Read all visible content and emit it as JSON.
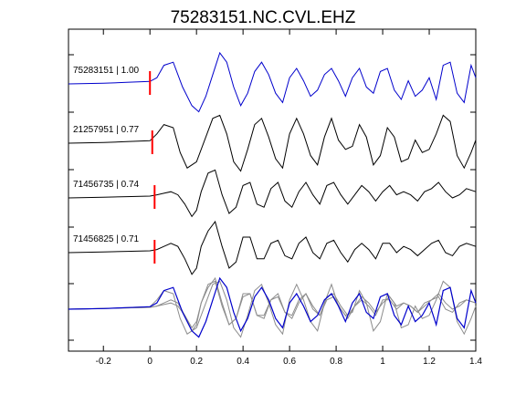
{
  "chart_data": {
    "type": "line",
    "title": "75283151.NC.CVL.EHZ",
    "xlabel": "",
    "ylabel": "",
    "xlim": [
      -0.35,
      1.4
    ],
    "x_ticks": [
      -0.2,
      0,
      0.2,
      0.4,
      0.6,
      0.8,
      1,
      1.2,
      1.4
    ],
    "x_tick_labels": [
      "-0.2",
      "0",
      "0.2",
      "0.4",
      "0.6",
      "0.8",
      "1",
      "1.2",
      "1.4"
    ],
    "grid": false,
    "legend": "none",
    "colors": {
      "primary": "#0000cc",
      "secondary": "#000000",
      "overlay": "#8c8c8c",
      "pick": "#ff0000"
    },
    "traces": [
      {
        "event_id": "75283151",
        "correlation": "1.00",
        "label": "75283151 | 1.00",
        "color": "#0000cc",
        "pick_time": 0.0,
        "x": [
          -0.35,
          -0.2,
          -0.1,
          0,
          0.03,
          0.06,
          0.1,
          0.14,
          0.18,
          0.21,
          0.24,
          0.27,
          0.3,
          0.33,
          0.36,
          0.39,
          0.42,
          0.45,
          0.48,
          0.51,
          0.54,
          0.57,
          0.6,
          0.63,
          0.66,
          0.69,
          0.72,
          0.75,
          0.78,
          0.81,
          0.84,
          0.87,
          0.9,
          0.93,
          0.96,
          0.99,
          1.02,
          1.05,
          1.08,
          1.11,
          1.14,
          1.17,
          1.2,
          1.23,
          1.26,
          1.29,
          1.32,
          1.35,
          1.38,
          1.4
        ],
        "y": [
          0,
          0.02,
          0.05,
          0.08,
          0.2,
          0.6,
          0.7,
          -0.1,
          -0.7,
          -0.9,
          -0.4,
          0.3,
          1.0,
          0.7,
          -0.1,
          -0.7,
          -0.3,
          0.4,
          0.7,
          0.3,
          -0.3,
          -0.6,
          0.2,
          0.5,
          0.1,
          -0.4,
          -0.2,
          0.3,
          0.5,
          0.1,
          -0.4,
          0.2,
          0.5,
          -0.1,
          -0.3,
          0.4,
          0.5,
          -0.2,
          -0.5,
          0.1,
          -0.4,
          -0.2,
          0.2,
          -0.5,
          0.6,
          0.7,
          -0.3,
          -0.6,
          0.6,
          0.2
        ]
      },
      {
        "event_id": "21257951",
        "correlation": "0.77",
        "label": "21257951 | 0.77",
        "color": "#000000",
        "pick_time": 0.01,
        "x": [
          -0.35,
          -0.2,
          -0.1,
          0,
          0.03,
          0.06,
          0.1,
          0.13,
          0.16,
          0.2,
          0.24,
          0.27,
          0.3,
          0.33,
          0.36,
          0.39,
          0.42,
          0.45,
          0.48,
          0.51,
          0.54,
          0.57,
          0.6,
          0.63,
          0.66,
          0.69,
          0.72,
          0.75,
          0.78,
          0.81,
          0.84,
          0.87,
          0.9,
          0.93,
          0.96,
          0.99,
          1.02,
          1.05,
          1.08,
          1.11,
          1.14,
          1.17,
          1.2,
          1.23,
          1.26,
          1.29,
          1.32,
          1.35,
          1.38,
          1.4
        ],
        "y": [
          0,
          0.02,
          0.05,
          0.08,
          0.3,
          0.6,
          0.5,
          -0.3,
          -0.8,
          -0.6,
          0.2,
          0.8,
          0.9,
          0.3,
          -0.6,
          -0.9,
          -0.2,
          0.6,
          0.8,
          0.2,
          -0.5,
          -0.8,
          0.3,
          0.8,
          0.3,
          -0.4,
          -0.7,
          0.2,
          0.8,
          0.1,
          -0.2,
          -0.1,
          0.6,
          0.2,
          -0.7,
          -0.4,
          0.5,
          0.2,
          -0.6,
          -0.5,
          0.1,
          -0.3,
          -0.2,
          0.3,
          0.9,
          0.7,
          -0.4,
          -0.8,
          -0.3,
          0.1
        ]
      },
      {
        "event_id": "71456735",
        "correlation": "0.74",
        "label": "71456735 | 0.74",
        "color": "#000000",
        "pick_time": 0.02,
        "x": [
          -0.35,
          -0.2,
          -0.1,
          0,
          0.03,
          0.06,
          0.09,
          0.12,
          0.15,
          0.18,
          0.2,
          0.22,
          0.25,
          0.28,
          0.31,
          0.34,
          0.37,
          0.4,
          0.43,
          0.46,
          0.49,
          0.52,
          0.55,
          0.58,
          0.61,
          0.64,
          0.67,
          0.7,
          0.73,
          0.76,
          0.79,
          0.82,
          0.85,
          0.88,
          0.91,
          0.94,
          0.97,
          1.0,
          1.03,
          1.06,
          1.09,
          1.12,
          1.15,
          1.18,
          1.21,
          1.24,
          1.27,
          1.3,
          1.33,
          1.36,
          1.4
        ],
        "y": [
          0,
          0.02,
          0.04,
          0.06,
          0.1,
          0.15,
          0.2,
          0.1,
          -0.2,
          -0.6,
          -0.4,
          0.2,
          0.8,
          0.9,
          0.1,
          -0.5,
          -0.3,
          0.4,
          0.5,
          -0.2,
          -0.3,
          0.3,
          0.5,
          -0.1,
          -0.3,
          0.2,
          0.5,
          0.1,
          -0.2,
          0.4,
          0.5,
          0.1,
          -0.2,
          0.1,
          0.4,
          0.2,
          -0.1,
          0.2,
          0.4,
          0.1,
          0.2,
          0.1,
          -0.1,
          0.2,
          0.3,
          0.5,
          0.2,
          0.0,
          0.1,
          0.3,
          0.2
        ]
      },
      {
        "event_id": "71456825",
        "correlation": "0.71",
        "label": "71456825 | 0.71",
        "color": "#000000",
        "pick_time": 0.02,
        "x": [
          -0.35,
          -0.2,
          -0.1,
          0,
          0.03,
          0.06,
          0.09,
          0.12,
          0.15,
          0.18,
          0.2,
          0.22,
          0.25,
          0.28,
          0.31,
          0.34,
          0.37,
          0.4,
          0.43,
          0.46,
          0.49,
          0.52,
          0.55,
          0.58,
          0.61,
          0.64,
          0.67,
          0.7,
          0.73,
          0.76,
          0.79,
          0.82,
          0.85,
          0.88,
          0.91,
          0.94,
          0.97,
          1.0,
          1.03,
          1.06,
          1.09,
          1.12,
          1.15,
          1.18,
          1.21,
          1.24,
          1.27,
          1.3,
          1.33,
          1.36,
          1.4
        ],
        "y": [
          0,
          0.02,
          0.04,
          0.06,
          0.1,
          0.2,
          0.3,
          0.2,
          -0.2,
          -0.7,
          -0.5,
          0.2,
          0.7,
          1.0,
          0.2,
          -0.5,
          -0.3,
          0.5,
          0.5,
          -0.2,
          -0.2,
          0.3,
          0.4,
          -0.1,
          -0.2,
          0.3,
          0.5,
          0.0,
          -0.2,
          0.3,
          0.4,
          0.0,
          -0.3,
          0.1,
          0.3,
          0.1,
          -0.2,
          0.3,
          0.3,
          0.0,
          0.2,
          0.1,
          -0.1,
          0.1,
          0.3,
          0.4,
          0.0,
          -0.1,
          0.2,
          0.3,
          0.2
        ]
      }
    ]
  }
}
